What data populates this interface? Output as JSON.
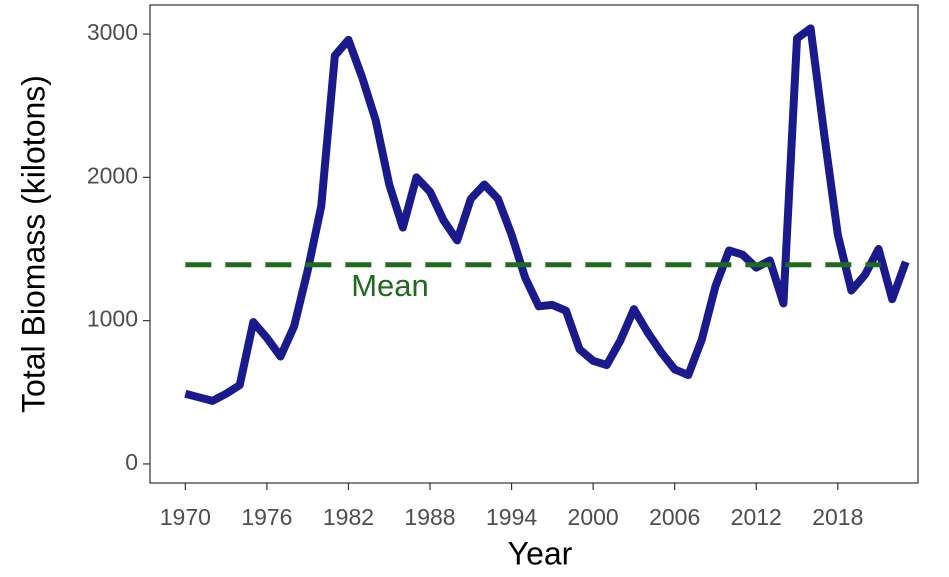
{
  "chart_data": {
    "type": "line",
    "x_label": "Year",
    "y_label": "Total Biomass (kilotons)",
    "x": [
      1970,
      1971,
      1972,
      1973,
      1974,
      1975,
      1976,
      1977,
      1978,
      1979,
      1980,
      1981,
      1982,
      1983,
      1984,
      1985,
      1986,
      1987,
      1988,
      1989,
      1990,
      1991,
      1992,
      1993,
      1994,
      1995,
      1996,
      1997,
      1998,
      1999,
      2000,
      2001,
      2002,
      2003,
      2004,
      2005,
      2006,
      2007,
      2008,
      2009,
      2010,
      2011,
      2012,
      2013,
      2014,
      2015,
      2016,
      2017,
      2018,
      2019,
      2020,
      2021,
      2022,
      2023
    ],
    "series": [
      {
        "color": "#1a1a8c",
        "values": [
          490,
          465,
          440,
          490,
          550,
          990,
          880,
          750,
          960,
          1350,
          1800,
          2850,
          2960,
          2700,
          2400,
          1950,
          1650,
          2000,
          1900,
          1700,
          1560,
          1850,
          1950,
          1850,
          1600,
          1300,
          1100,
          1110,
          1070,
          800,
          720,
          690,
          860,
          1080,
          920,
          780,
          660,
          620,
          870,
          1240,
          1490,
          1460,
          1370,
          1420,
          1120,
          2970,
          3040,
          2300,
          1600,
          1210,
          1320,
          1500,
          1150,
          1410
        ]
      }
    ],
    "mean": 1390,
    "mean_label": "Mean",
    "mean_color": "#1e6b1e",
    "xlim": [
      1967.4,
      2023.9
    ],
    "ylim": [
      -133,
      3203
    ],
    "xticks": [
      1970,
      1976,
      1982,
      1988,
      1994,
      2000,
      2006,
      2012,
      2018
    ],
    "yticks": [
      0,
      1000,
      2000,
      3000
    ]
  }
}
